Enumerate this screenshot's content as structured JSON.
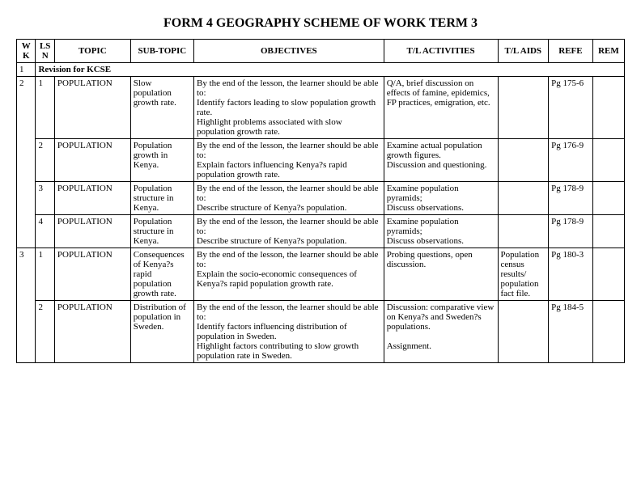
{
  "title": "FORM 4 GEOGRAPHY SCHEME OF WORK TERM 3",
  "headers": {
    "wk": "WK",
    "lsn": "LSN",
    "topic": "TOPIC",
    "subtopic": "SUB-TOPIC",
    "objectives": "OBJECTIVES",
    "activities": "T/L ACTIVITIES",
    "aids": "T/L AIDS",
    "refe": "REFE",
    "rem": "REM"
  },
  "revision_row": {
    "wk": "1",
    "text": "Revision for KCSE"
  },
  "rows": [
    {
      "wk": "2",
      "lsn": "1",
      "topic": "POPULATION",
      "subtopic": "Slow population growth rate.",
      "objectives": "By the end of the lesson, the learner should be able to:\nIdentify factors leading to slow population growth rate.\nHighlight problems associated with slow population growth rate.",
      "activities": "Q/A, brief discussion on effects of famine, epidemics, FP practices, emigration, etc.",
      "aids": "",
      "refe": "Pg 175-6",
      "rem": ""
    },
    {
      "wk": "",
      "lsn": "2",
      "topic": "POPULATION",
      "subtopic": "Population growth in Kenya.",
      "objectives": "By the end of the lesson, the learner should be able to:\nExplain factors influencing Kenya?s rapid population growth rate.",
      "activities": "Examine actual population growth figures.\nDiscussion and questioning.",
      "aids": "",
      "refe": "Pg 176-9",
      "rem": ""
    },
    {
      "wk": "",
      "lsn": "3",
      "topic": "POPULATION",
      "subtopic": "Population structure in Kenya.",
      "objectives": "By the end of the lesson, the learner should be able to:\nDescribe structure of Kenya?s population.",
      "activities": "Examine population pyramids;\nDiscuss observations.",
      "aids": "",
      "refe": "Pg 178-9",
      "rem": ""
    },
    {
      "wk": "",
      "lsn": "4",
      "topic": "POPULATION",
      "subtopic": "Population structure in Kenya.",
      "objectives": "By the end of the lesson, the learner should be able to:\nDescribe structure of Kenya?s population.",
      "activities": "Examine population pyramids;\nDiscuss observations.",
      "aids": "",
      "refe": "Pg 178-9",
      "rem": ""
    },
    {
      "wk": "3",
      "lsn": "1",
      "topic": "POPULATION",
      "subtopic": "Consequences of Kenya?s rapid population growth rate.",
      "objectives": "By the end of the lesson, the learner should be able to:\nExplain the socio-economic consequences of Kenya?s rapid population growth rate.",
      "activities": "Probing questions, open discussion.",
      "aids": "Population census results/ population fact file.",
      "refe": "Pg 180-3",
      "rem": ""
    },
    {
      "wk": "",
      "lsn": "2",
      "topic": "POPULATION",
      "subtopic": "Distribution of population in Sweden.",
      "objectives": "By the end of the lesson, the learner should be able to:\nIdentify factors influencing distribution of population in Sweden.\nHighlight factors contributing to slow growth population rate in Sweden.",
      "activities": "Discussion: comparative view on Kenya?s and Sweden?s populations.\n\nAssignment.",
      "aids": "",
      "refe": "Pg 184-5",
      "rem": ""
    }
  ]
}
